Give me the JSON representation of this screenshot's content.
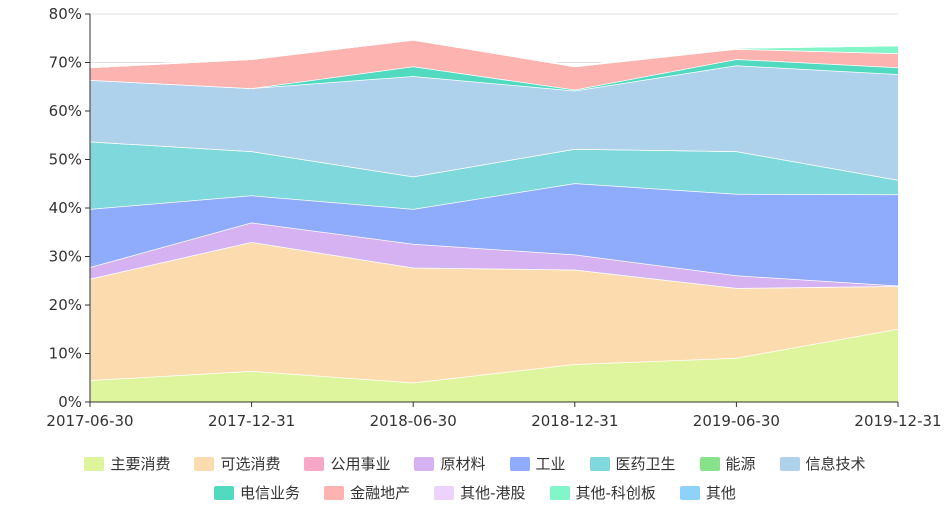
{
  "chart_data": {
    "type": "area",
    "stacked": true,
    "x": [
      "2017-06-30",
      "2017-12-31",
      "2018-06-30",
      "2018-12-31",
      "2019-06-30",
      "2019-12-31"
    ],
    "ylim": [
      0,
      80
    ],
    "yticks": [
      "0%",
      "10%",
      "20%",
      "30%",
      "40%",
      "50%",
      "60%",
      "70%",
      "80%"
    ],
    "grid": true,
    "legend_position": "bottom",
    "series": [
      {
        "name": "主要消费",
        "color": "#dff59d",
        "values": [
          4.5,
          6.4,
          4.0,
          7.8,
          9.1,
          15.1
        ]
      },
      {
        "name": "可选消费",
        "color": "#fcdcae",
        "values": [
          20.9,
          26.6,
          23.7,
          19.5,
          14.4,
          8.8
        ]
      },
      {
        "name": "公用事业",
        "color": "#f7a8c9",
        "values": [
          0,
          0,
          0,
          0,
          0,
          0
        ]
      },
      {
        "name": "原材料",
        "color": "#d6b2f2",
        "values": [
          2.4,
          4.0,
          4.9,
          3.1,
          2.6,
          0.1
        ]
      },
      {
        "name": "工业",
        "color": "#8eabfc",
        "values": [
          12.0,
          5.6,
          7.2,
          14.7,
          16.8,
          18.8
        ]
      },
      {
        "name": "医药卫生",
        "color": "#7ed8dc",
        "values": [
          13.9,
          9.1,
          6.7,
          7.1,
          8.8,
          3.0
        ]
      },
      {
        "name": "能源",
        "color": "#88e28b",
        "values": [
          0,
          0,
          0,
          0,
          0,
          0
        ]
      },
      {
        "name": "信息技术",
        "color": "#aed1ec",
        "values": [
          12.7,
          13.0,
          20.7,
          12.0,
          17.7,
          21.8
        ]
      },
      {
        "name": "电信业务",
        "color": "#52dac0",
        "values": [
          0,
          0,
          2.0,
          0.2,
          1.3,
          1.4
        ]
      },
      {
        "name": "金融地产",
        "color": "#fdb3b0",
        "values": [
          2.6,
          6.0,
          5.5,
          4.8,
          2.1,
          2.9
        ]
      },
      {
        "name": "其他-港股",
        "color": "#ecd3fb",
        "values": [
          0,
          0,
          0,
          0,
          0,
          0
        ]
      },
      {
        "name": "其他-科创板",
        "color": "#82f5c9",
        "values": [
          0,
          0,
          0,
          0,
          0.2,
          1.6
        ]
      },
      {
        "name": "其他",
        "color": "#8ed2fc",
        "values": [
          0,
          0,
          0,
          0,
          0,
          0
        ]
      }
    ]
  }
}
